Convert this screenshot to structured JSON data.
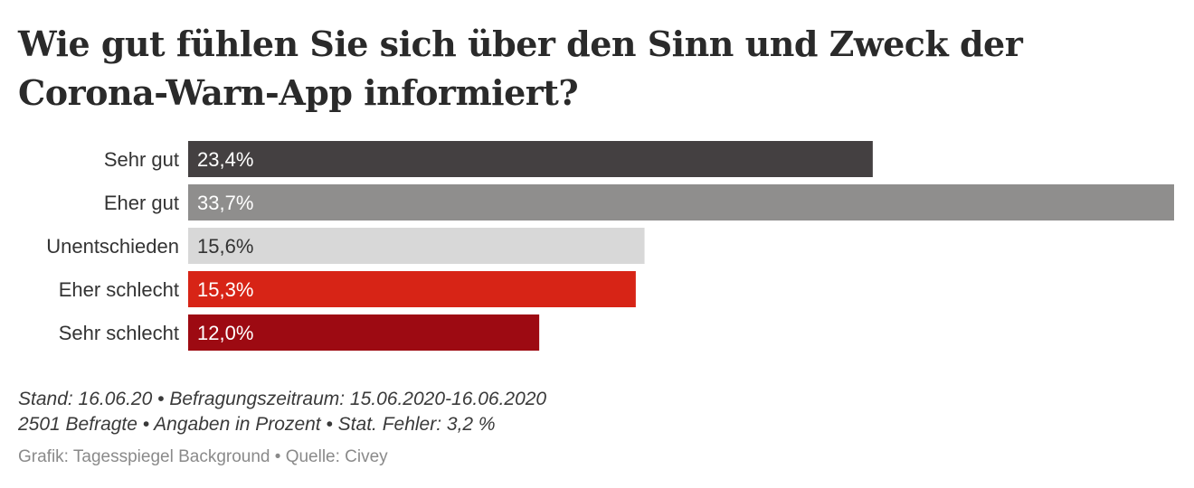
{
  "chart_data": {
    "type": "bar",
    "orientation": "horizontal",
    "title": "Wie gut fühlen Sie sich über den Sinn und Zweck der Corona-Warn-App informiert?",
    "categories": [
      "Sehr gut",
      "Eher gut",
      "Unentschieden",
      "Eher schlecht",
      "Sehr schlecht"
    ],
    "values": [
      23.4,
      33.7,
      15.6,
      15.3,
      12.0
    ],
    "value_labels": [
      "23,4%",
      "33,7%",
      "15,6%",
      "15,3%",
      "12,0%"
    ],
    "colors": [
      "#444041",
      "#8f8e8d",
      "#d8d8d8",
      "#d72416",
      "#9d0a12"
    ],
    "label_colors": [
      "#ffffff",
      "#ffffff",
      "#333333",
      "#ffffff",
      "#ffffff"
    ],
    "xlim": [
      0,
      33.7
    ],
    "grid": false,
    "legend": "none"
  },
  "footer": {
    "line1": "Stand: 16.06.20 • Befragungszeitraum: 15.06.2020-16.06.2020",
    "line2": "2501 Befragte • Angaben in Prozent • Stat. Fehler: 3,2 %",
    "credit": "Grafik: Tagesspiegel Background • Quelle: Civey"
  }
}
